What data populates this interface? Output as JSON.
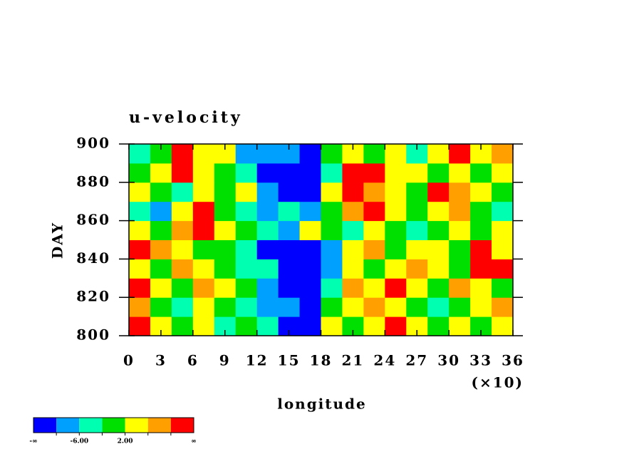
{
  "chart_data": {
    "type": "heatmap",
    "title": "u-velocity",
    "xlabel": "longitude",
    "ylabel": "DAY",
    "x_multiplier": "(×10)",
    "xlim": [
      0,
      36
    ],
    "xticks": [
      0,
      3,
      6,
      9,
      12,
      15,
      18,
      21,
      24,
      27,
      30,
      33,
      36
    ],
    "ylim": [
      800,
      900
    ],
    "yticks": [
      800,
      820,
      840,
      860,
      880,
      900
    ],
    "xbins": [
      0,
      2,
      4,
      6,
      8,
      10,
      12,
      14,
      16,
      18,
      20,
      22,
      24,
      26,
      28,
      30,
      32,
      34,
      36
    ],
    "ybins": [
      800,
      810,
      820,
      830,
      840,
      850,
      860,
      870,
      880,
      890,
      900
    ],
    "z": [
      [
        12,
        4,
        0,
        4,
        -4,
        0,
        -4,
        -12,
        -12,
        4,
        0,
        4,
        12,
        4,
        0,
        4,
        0,
        4
      ],
      [
        8,
        0,
        -4,
        4,
        0,
        -4,
        -8,
        -8,
        -12,
        0,
        4,
        8,
        4,
        0,
        -4,
        0,
        4,
        8
      ],
      [
        12,
        4,
        0,
        8,
        4,
        0,
        -8,
        -12,
        -12,
        -4,
        8,
        4,
        12,
        4,
        0,
        8,
        4,
        0
      ],
      [
        4,
        0,
        8,
        4,
        0,
        -4,
        -4,
        -12,
        -12,
        -8,
        4,
        0,
        4,
        8,
        4,
        0,
        12,
        12
      ],
      [
        12,
        8,
        4,
        0,
        0,
        -4,
        -12,
        -12,
        -12,
        -8,
        4,
        8,
        0,
        4,
        4,
        0,
        12,
        4
      ],
      [
        4,
        0,
        8,
        12,
        4,
        0,
        -4,
        -8,
        4,
        0,
        -4,
        4,
        0,
        -4,
        0,
        4,
        0,
        4
      ],
      [
        -4,
        -8,
        4,
        12,
        0,
        -4,
        -8,
        -4,
        -8,
        0,
        8,
        12,
        4,
        0,
        4,
        8,
        0,
        -4
      ],
      [
        4,
        0,
        -4,
        4,
        0,
        4,
        -8,
        -12,
        -12,
        4,
        12,
        8,
        4,
        0,
        12,
        8,
        4,
        0
      ],
      [
        0,
        4,
        12,
        4,
        0,
        -4,
        -12,
        -12,
        -12,
        -4,
        12,
        12,
        4,
        4,
        0,
        4,
        0,
        4
      ],
      [
        -4,
        0,
        12,
        4,
        4,
        -8,
        -8,
        -8,
        -12,
        0,
        4,
        0,
        4,
        -4,
        4,
        12,
        4,
        8
      ]
    ],
    "colorbar": {
      "boundaries": [
        -10,
        -6,
        -2,
        2,
        6,
        10
      ],
      "colors": [
        "#0000ff",
        "#00a0ff",
        "#00ffb0",
        "#00e000",
        "#ffff00",
        "#ffa000",
        "#ff0000"
      ],
      "labels": [
        "-∞",
        "-6.00",
        "2.00",
        "∞"
      ]
    }
  }
}
